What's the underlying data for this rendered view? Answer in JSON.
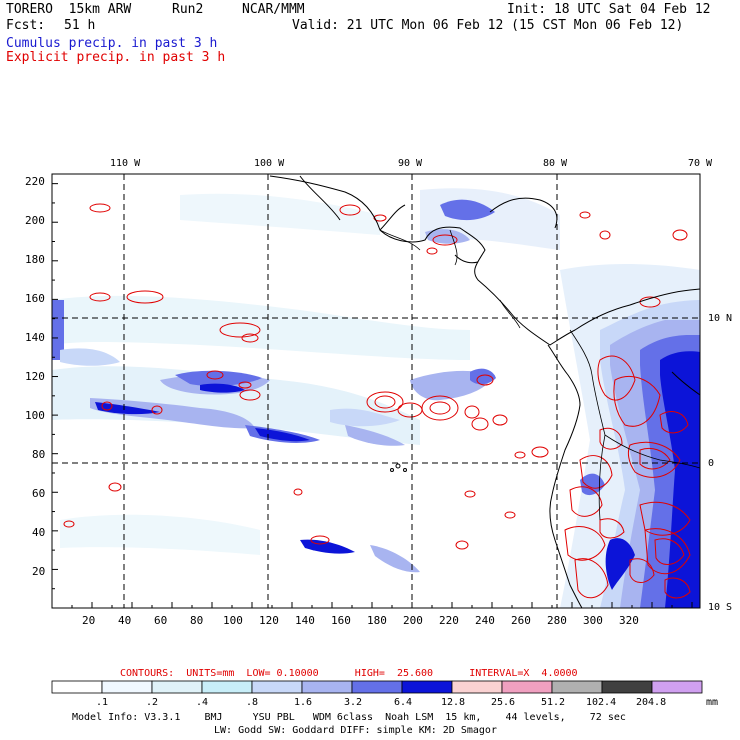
{
  "header": {
    "model": "TORERO  15km ARW",
    "run": "Run2",
    "org": "NCAR/MMM",
    "init": "Init: 18 UTC Sat 04 Feb 12",
    "fcst_label": "Fcst:",
    "fcst_hours": "51 h",
    "valid": "Valid: 21 UTC Mon 06 Feb 12 (15 CST Mon 06 Feb 12)",
    "field1": "Cumulus precip. in past 3 h",
    "field2": "Explicit precip. in past 3 h"
  },
  "colors": {
    "field1": "#1a1ad0",
    "field2": "#e00000"
  },
  "map": {
    "top_lon_labels": [
      "110 W",
      "100 W",
      "90 W",
      "80 W",
      "70 W"
    ],
    "right_lat_labels": [
      "10 N",
      "0",
      "10 S"
    ],
    "y_ticks": [
      "220",
      "200",
      "180",
      "160",
      "140",
      "120",
      "100",
      "80",
      "60",
      "40",
      "20"
    ],
    "x_ticks": [
      "20",
      "40",
      "60",
      "80",
      "100",
      "120",
      "140",
      "160",
      "180",
      "200",
      "220",
      "240",
      "260",
      "280",
      "300",
      "320"
    ]
  },
  "contours": {
    "text": "CONTOURS:  UNITS=mm  LOW= 0.10000      HIGH=  25.600      INTERVAL=X  4.0000"
  },
  "colorbar": {
    "labels": [
      ".1",
      ".2",
      ".4",
      ".8",
      "1.6",
      "3.2",
      "6.4",
      "12.8",
      "25.6",
      "51.2",
      "102.4",
      "204.8"
    ],
    "unit": "mm",
    "colors": [
      "#ffffff",
      "#f0f8ff",
      "#e0f2f8",
      "#c8eef8",
      "#c8d8f8",
      "#a8b4f0",
      "#6470e8",
      "#0c14d8",
      "#fad2d2",
      "#f0a0c0",
      "#b0b0b0",
      "#404040",
      "#d0a0f0"
    ]
  },
  "footer": {
    "line1": "Model Info: V3.3.1    BMJ     YSU PBL   WDM 6class  Noah LSM  15 km,    44 levels,    72 sec",
    "line2": "LW: Godd SW: Goddard DIFF: simple KM: 2D Smagor"
  }
}
